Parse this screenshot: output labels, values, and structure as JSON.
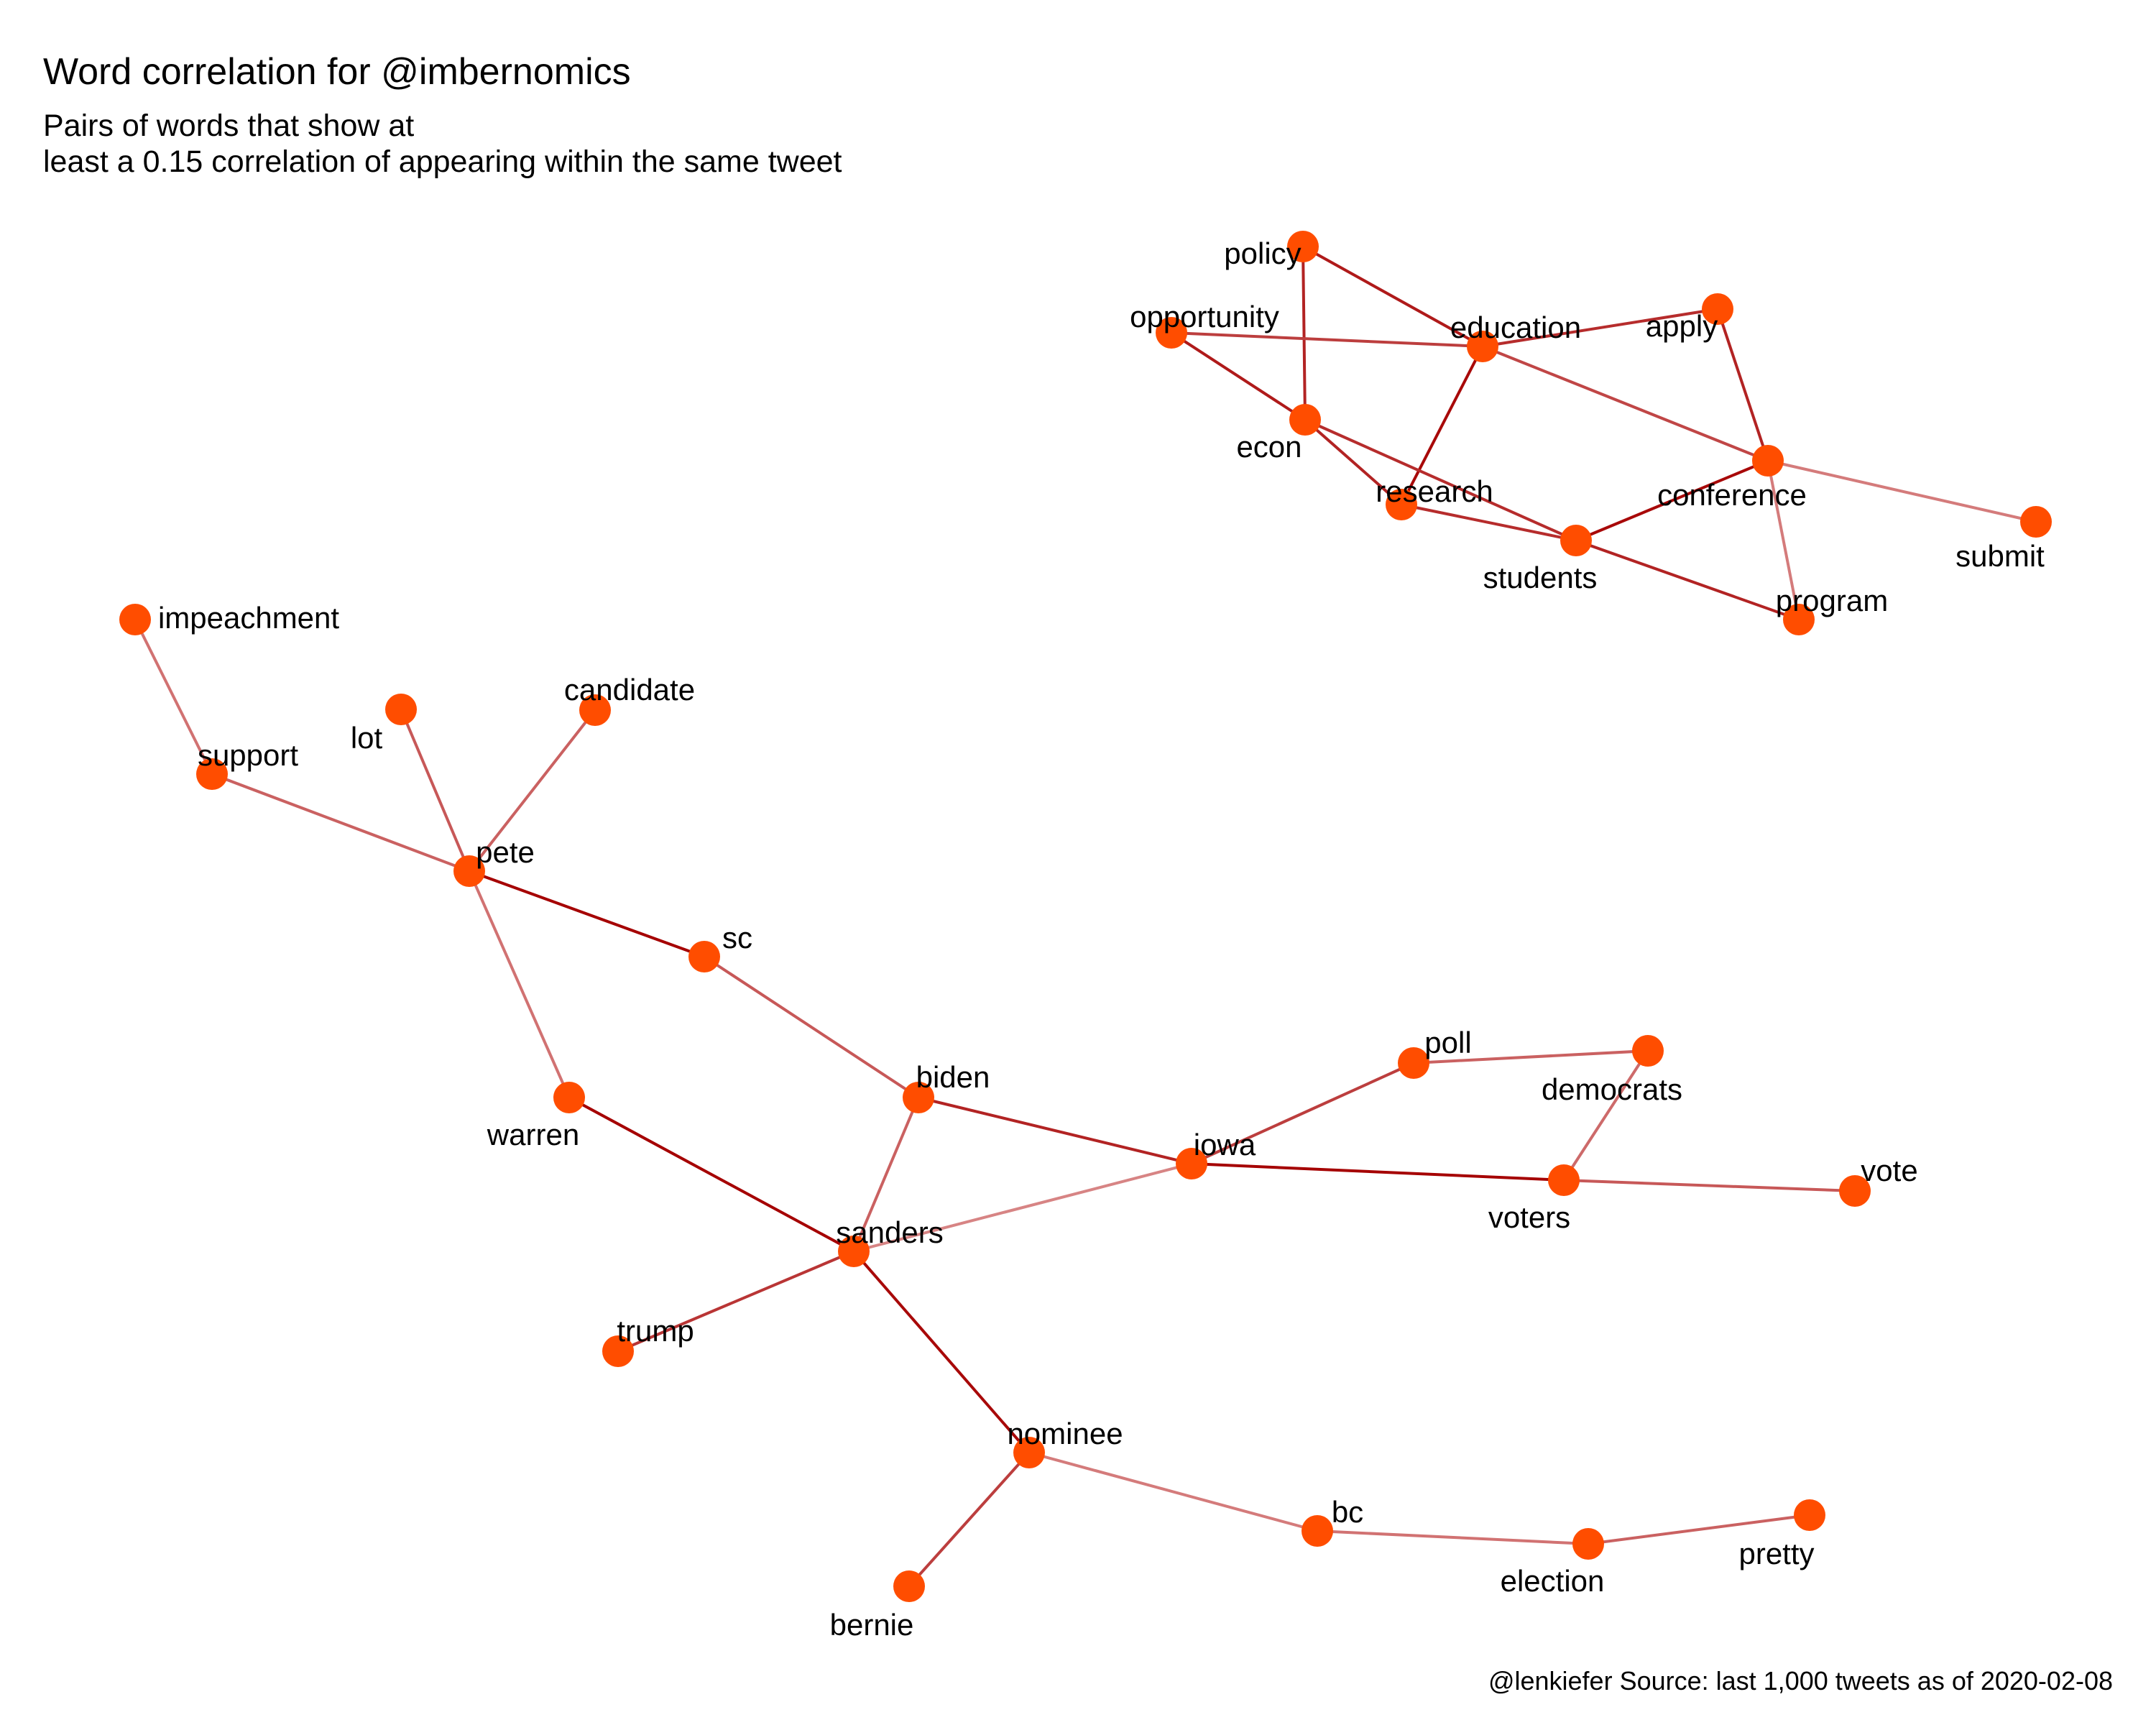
{
  "title": "Word correlation for @imbernomics",
  "subtitle_lines": [
    "Pairs of words  that show at",
    "least a 0.15 correlation of appearing within the same tweet"
  ],
  "caption": "@lenkiefer Source: last 1,000 tweets as of 2020-02-08",
  "colors": {
    "node": "#ff4d00",
    "edge_strong": "#a50000",
    "edge_weak": "#e8b0b0"
  },
  "graph": {
    "nodes": [
      {
        "id": "policy",
        "label": "policy"
      },
      {
        "id": "opportunity",
        "label": "opportunity"
      },
      {
        "id": "education",
        "label": "education"
      },
      {
        "id": "apply",
        "label": "apply"
      },
      {
        "id": "econ",
        "label": "econ"
      },
      {
        "id": "research",
        "label": "research"
      },
      {
        "id": "conference",
        "label": "conference"
      },
      {
        "id": "students",
        "label": "students"
      },
      {
        "id": "submit",
        "label": "submit"
      },
      {
        "id": "program",
        "label": "program"
      },
      {
        "id": "impeachment",
        "label": "impeachment"
      },
      {
        "id": "candidate",
        "label": "candidate"
      },
      {
        "id": "lot",
        "label": "lot"
      },
      {
        "id": "support",
        "label": "support"
      },
      {
        "id": "pete",
        "label": "pete"
      },
      {
        "id": "sc",
        "label": "sc"
      },
      {
        "id": "poll",
        "label": "poll"
      },
      {
        "id": "democrats",
        "label": "democrats"
      },
      {
        "id": "biden",
        "label": "biden"
      },
      {
        "id": "warren",
        "label": "warren"
      },
      {
        "id": "iowa",
        "label": "iowa"
      },
      {
        "id": "vote",
        "label": "vote"
      },
      {
        "id": "voters",
        "label": "voters"
      },
      {
        "id": "sanders",
        "label": "sanders"
      },
      {
        "id": "trump",
        "label": "trump"
      },
      {
        "id": "nominee",
        "label": "nominee"
      },
      {
        "id": "bc",
        "label": "bc"
      },
      {
        "id": "pretty",
        "label": "pretty"
      },
      {
        "id": "election",
        "label": "election"
      },
      {
        "id": "bernie",
        "label": "bernie"
      }
    ],
    "edges": [
      {
        "source": "policy",
        "target": "education",
        "strength": 0.85
      },
      {
        "source": "policy",
        "target": "econ",
        "strength": 0.8
      },
      {
        "source": "opportunity",
        "target": "education",
        "strength": 0.65
      },
      {
        "source": "opportunity",
        "target": "econ",
        "strength": 0.85
      },
      {
        "source": "education",
        "target": "apply",
        "strength": 0.75
      },
      {
        "source": "education",
        "target": "research",
        "strength": 0.95
      },
      {
        "source": "education",
        "target": "conference",
        "strength": 0.6
      },
      {
        "source": "apply",
        "target": "conference",
        "strength": 0.8
      },
      {
        "source": "econ",
        "target": "research",
        "strength": 0.8
      },
      {
        "source": "econ",
        "target": "students",
        "strength": 0.75
      },
      {
        "source": "research",
        "target": "students",
        "strength": 0.75
      },
      {
        "source": "students",
        "target": "conference",
        "strength": 0.95
      },
      {
        "source": "students",
        "target": "program",
        "strength": 0.8
      },
      {
        "source": "conference",
        "target": "submit",
        "strength": 0.3
      },
      {
        "source": "conference",
        "target": "program",
        "strength": 0.3
      },
      {
        "source": "impeachment",
        "target": "support",
        "strength": 0.35
      },
      {
        "source": "support",
        "target": "pete",
        "strength": 0.45
      },
      {
        "source": "lot",
        "target": "pete",
        "strength": 0.5
      },
      {
        "source": "candidate",
        "target": "pete",
        "strength": 0.45
      },
      {
        "source": "pete",
        "target": "sc",
        "strength": 1.0
      },
      {
        "source": "pete",
        "target": "warren",
        "strength": 0.35
      },
      {
        "source": "sc",
        "target": "biden",
        "strength": 0.5
      },
      {
        "source": "biden",
        "target": "iowa",
        "strength": 0.8
      },
      {
        "source": "biden",
        "target": "sanders",
        "strength": 0.45
      },
      {
        "source": "iowa",
        "target": "poll",
        "strength": 0.65
      },
      {
        "source": "iowa",
        "target": "voters",
        "strength": 1.0
      },
      {
        "source": "iowa",
        "target": "sanders",
        "strength": 0.25
      },
      {
        "source": "poll",
        "target": "democrats",
        "strength": 0.45
      },
      {
        "source": "democrats",
        "target": "voters",
        "strength": 0.4
      },
      {
        "source": "voters",
        "target": "vote",
        "strength": 0.5
      },
      {
        "source": "warren",
        "target": "sanders",
        "strength": 1.0
      },
      {
        "source": "sanders",
        "target": "trump",
        "strength": 0.7
      },
      {
        "source": "sanders",
        "target": "nominee",
        "strength": 0.95
      },
      {
        "source": "nominee",
        "target": "bernie",
        "strength": 0.65
      },
      {
        "source": "nominee",
        "target": "bc",
        "strength": 0.3
      },
      {
        "source": "bc",
        "target": "election",
        "strength": 0.35
      },
      {
        "source": "election",
        "target": "pretty",
        "strength": 0.45
      }
    ]
  }
}
